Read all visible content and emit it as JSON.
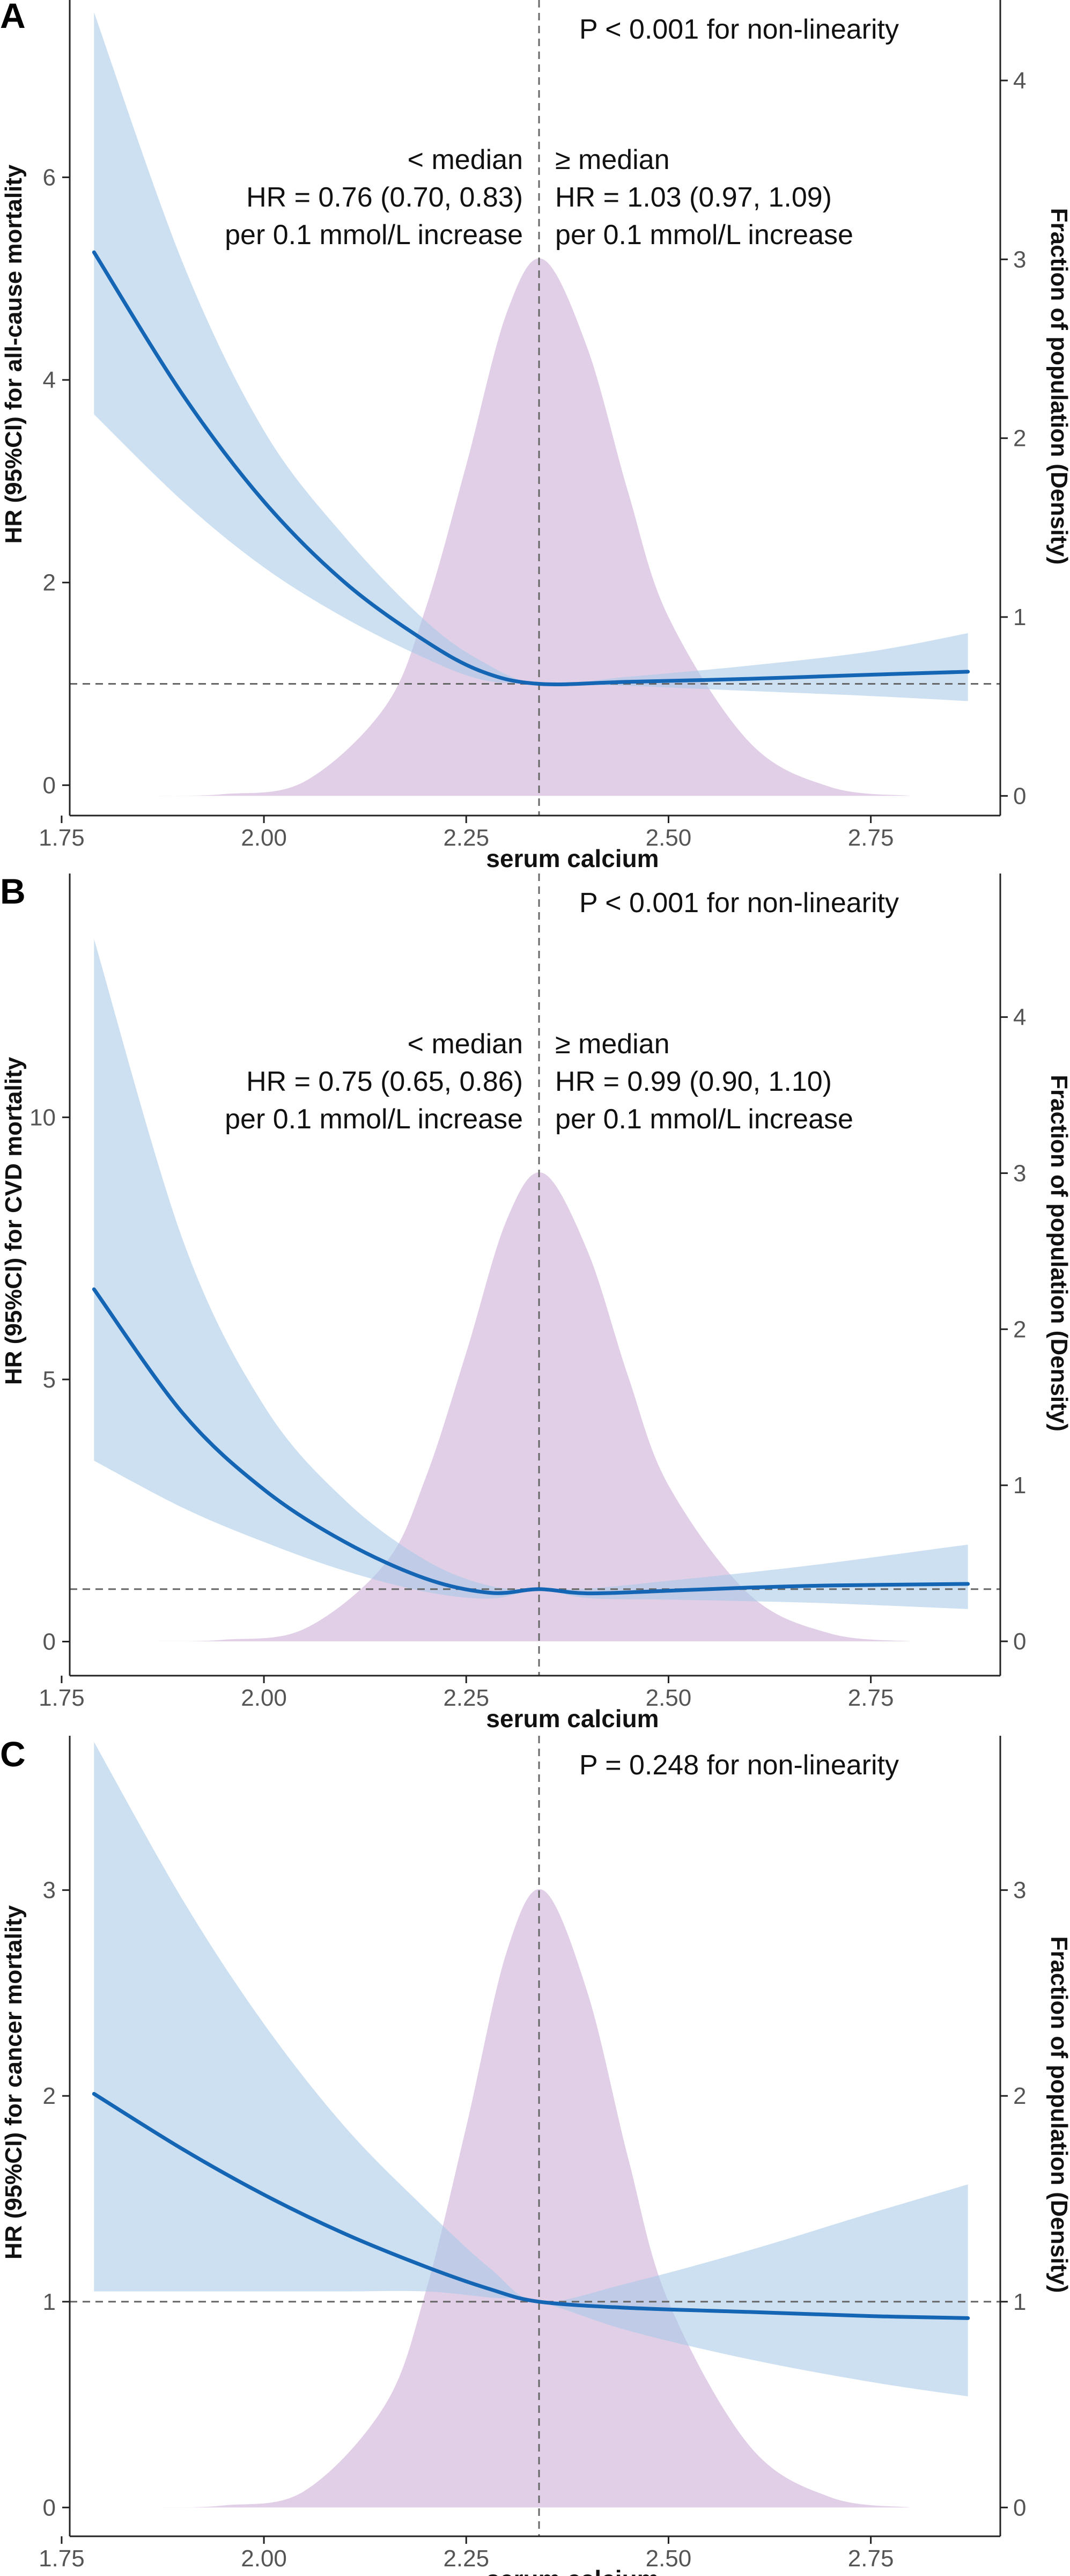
{
  "colors": {
    "hr_line": "#1565b5",
    "ci_band": "#aacbe8",
    "density": "#dcc6e3",
    "reference": "#666666",
    "axis": "#222222",
    "tick_label": "#555555",
    "text": "#111111"
  },
  "chart_data": [
    {
      "type": "line",
      "panel_label": "A",
      "annotation": "P < 0.001  for non-linearity",
      "xlabel": "serum calcium",
      "ylabel": "HR (95%CI) for all-cause mortality",
      "ylabel_right": "Fraction of population (Density)",
      "xlim": [
        1.76,
        2.91
      ],
      "ylim": [
        -0.3,
        7.75
      ],
      "ylim_right": [
        -0.11,
        4.45
      ],
      "x_ticks": [
        "1.75",
        "2.00",
        "2.25",
        "2.50",
        "2.75"
      ],
      "y_ticks": [
        "0",
        "2",
        "4",
        "6"
      ],
      "y_ticks_right": [
        "0",
        "1",
        "2",
        "3",
        "4"
      ],
      "median": 2.34,
      "reference_hr": 1,
      "left_text": [
        "< median",
        "HR = 0.76 (0.70, 0.83)",
        "per 0.1 mmol/L increase"
      ],
      "right_text": [
        "≥ median",
        "HR = 1.03 (0.97, 1.09)",
        "per 0.1 mmol/L increase"
      ],
      "series": [
        {
          "name": "HR",
          "x": [
            1.79,
            1.9,
            2.0,
            2.1,
            2.2,
            2.27,
            2.34,
            2.45,
            2.6,
            2.75,
            2.87
          ],
          "y": [
            5.26,
            3.85,
            2.8,
            2.0,
            1.42,
            1.12,
            1.0,
            1.02,
            1.05,
            1.09,
            1.12
          ],
          "lower": [
            3.66,
            2.8,
            2.15,
            1.65,
            1.25,
            1.04,
            1.0,
            0.98,
            0.93,
            0.88,
            0.83
          ],
          "upper": [
            7.63,
            5.15,
            3.5,
            2.45,
            1.62,
            1.22,
            1.0,
            1.07,
            1.18,
            1.32,
            1.5
          ]
        },
        {
          "name": "Density",
          "x": [
            1.87,
            1.95,
            2.05,
            2.15,
            2.2,
            2.25,
            2.3,
            2.345,
            2.4,
            2.45,
            2.5,
            2.6,
            2.7,
            2.8
          ],
          "y": [
            0.0,
            0.01,
            0.08,
            0.5,
            1.05,
            1.85,
            2.7,
            3.0,
            2.5,
            1.7,
            1.0,
            0.3,
            0.05,
            0.0
          ]
        }
      ]
    },
    {
      "type": "line",
      "panel_label": "B",
      "annotation": "P < 0.001 for non-linearity",
      "xlabel": "serum calcium",
      "ylabel": "HR (95%CI) for CVD mortality",
      "ylabel_right": "Fraction of population (Density)",
      "xlim": [
        1.76,
        2.91
      ],
      "ylim": [
        -0.65,
        14.65
      ],
      "ylim_right": [
        -0.22,
        4.92
      ],
      "x_ticks": [
        "1.75",
        "2.00",
        "2.25",
        "2.50",
        "2.75"
      ],
      "y_ticks": [
        "0",
        "5",
        "10"
      ],
      "y_ticks_right": [
        "0",
        "1",
        "2",
        "3",
        "4"
      ],
      "median": 2.34,
      "reference_hr": 1,
      "left_text": [
        "< median",
        "HR = 0.75 (0.65, 0.86)",
        "per 0.1 mmol/L increase"
      ],
      "right_text": [
        "≥ median",
        "HR = 0.99 (0.90, 1.10)",
        "per 0.1 mmol/L increase"
      ],
      "series": [
        {
          "name": "HR",
          "x": [
            1.79,
            1.9,
            2.0,
            2.1,
            2.2,
            2.28,
            2.34,
            2.4,
            2.5,
            2.6,
            2.7,
            2.87
          ],
          "y": [
            6.72,
            4.35,
            2.9,
            1.9,
            1.2,
            0.93,
            1.0,
            0.92,
            0.97,
            1.03,
            1.07,
            1.1
          ],
          "lower": [
            3.45,
            2.55,
            1.9,
            1.35,
            0.95,
            0.82,
            0.99,
            0.83,
            0.8,
            0.77,
            0.73,
            0.62
          ],
          "upper": [
            13.4,
            7.65,
            4.5,
            2.7,
            1.55,
            1.06,
            1.01,
            1.01,
            1.16,
            1.32,
            1.5,
            1.85
          ]
        },
        {
          "name": "Density",
          "x": [
            1.87,
            1.95,
            2.05,
            2.15,
            2.2,
            2.25,
            2.3,
            2.345,
            2.4,
            2.45,
            2.5,
            2.6,
            2.7,
            2.8
          ],
          "y": [
            0.0,
            0.01,
            0.08,
            0.5,
            1.05,
            1.85,
            2.7,
            3.0,
            2.5,
            1.7,
            1.0,
            0.3,
            0.05,
            0.0
          ]
        }
      ]
    },
    {
      "type": "line",
      "panel_label": "C",
      "annotation": "P = 0.248 for non-linearity",
      "xlabel": "serum calcium",
      "ylabel": "HR (95%CI) for cancer mortality",
      "ylabel_right": "Fraction of population (Density)",
      "xlim": [
        1.76,
        2.91
      ],
      "ylim": [
        -0.14,
        3.75
      ],
      "ylim_right": [
        -0.14,
        3.75
      ],
      "x_ticks": [
        "1.75",
        "2.00",
        "2.25",
        "2.50",
        "2.75"
      ],
      "y_ticks": [
        "0",
        "1",
        "2",
        "3"
      ],
      "y_ticks_right": [
        "0",
        "1",
        "2",
        "3"
      ],
      "median": 2.34,
      "reference_hr": 1,
      "left_text": [],
      "right_text": [],
      "series": [
        {
          "name": "HR",
          "x": [
            1.79,
            1.9,
            2.0,
            2.1,
            2.2,
            2.28,
            2.34,
            2.45,
            2.6,
            2.75,
            2.87
          ],
          "y": [
            2.01,
            1.74,
            1.52,
            1.33,
            1.17,
            1.06,
            1.0,
            0.97,
            0.95,
            0.93,
            0.92
          ],
          "lower": [
            1.05,
            1.05,
            1.05,
            1.05,
            1.05,
            1.02,
            1.0,
            0.86,
            0.72,
            0.61,
            0.54
          ],
          "upper": [
            3.72,
            2.95,
            2.35,
            1.85,
            1.45,
            1.16,
            1.0,
            1.09,
            1.25,
            1.43,
            1.57
          ]
        },
        {
          "name": "Density",
          "x": [
            1.87,
            1.95,
            2.05,
            2.15,
            2.2,
            2.25,
            2.3,
            2.345,
            2.4,
            2.45,
            2.5,
            2.6,
            2.7,
            2.8
          ],
          "y": [
            0.0,
            0.01,
            0.08,
            0.5,
            1.05,
            1.85,
            2.7,
            3.0,
            2.5,
            1.7,
            1.0,
            0.3,
            0.05,
            0.0
          ]
        }
      ]
    }
  ]
}
